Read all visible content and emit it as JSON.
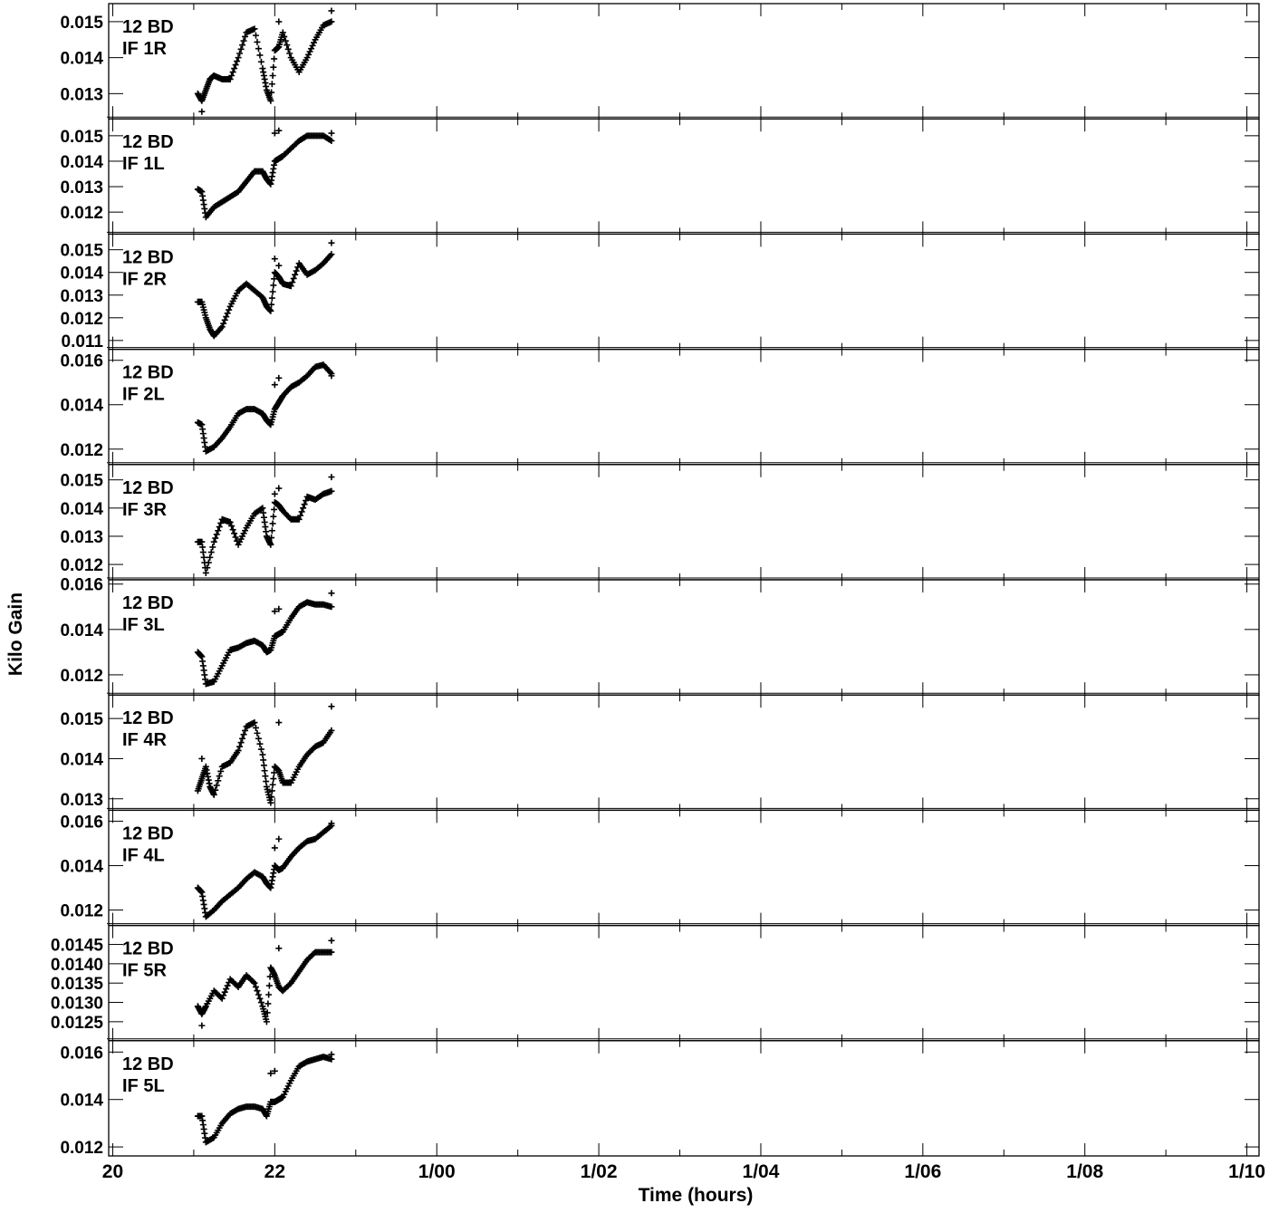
{
  "chart_data": {
    "type": "scatter",
    "marker": "plus",
    "color": "#000000",
    "xlabel": "Time (hours)",
    "ylabel": "Kilo Gain",
    "x_ticks": [
      {
        "value": 0,
        "label": "20"
      },
      {
        "value": 2,
        "label": "22"
      },
      {
        "value": 4,
        "label": "1/00"
      },
      {
        "value": 6,
        "label": "1/02"
      },
      {
        "value": 8,
        "label": "1/04"
      },
      {
        "value": 10,
        "label": "1/06"
      },
      {
        "value": 12,
        "label": "1/08"
      },
      {
        "value": 14,
        "label": "1/10"
      }
    ],
    "x_minor_step": 1,
    "xlim": [
      -0.05,
      14.15
    ],
    "panels": [
      {
        "title": "12 BD",
        "subtitle": "IF 1R",
        "ylim": [
          0.01245,
          0.01535
        ],
        "yticks": [
          {
            "value": 0.013,
            "label": "0.013"
          },
          {
            "value": 0.014,
            "label": "0.014"
          },
          {
            "value": 0.015,
            "label": "0.015"
          }
        ],
        "x": [
          1.05,
          1.1,
          1.15,
          1.2,
          1.25,
          1.35,
          1.45,
          1.55,
          1.65,
          1.75,
          1.85,
          1.9,
          1.95,
          2.0,
          2.05,
          2.1,
          2.2,
          2.3,
          2.4,
          2.5,
          2.6,
          2.7
        ],
        "y": [
          0.013,
          0.0128,
          0.0131,
          0.0134,
          0.0135,
          0.0134,
          0.0134,
          0.014,
          0.0147,
          0.0148,
          0.0137,
          0.0131,
          0.0128,
          0.0142,
          0.0143,
          0.0147,
          0.014,
          0.0136,
          0.014,
          0.0145,
          0.0149,
          0.015
        ],
        "outliers": {
          "x": [
            1.1,
            2.05,
            2.7
          ],
          "y": [
            0.0125,
            0.015,
            0.0153
          ]
        }
      },
      {
        "title": "12 BD",
        "subtitle": "IF 1L",
        "ylim": [
          0.01135,
          0.01545
        ],
        "yticks": [
          {
            "value": 0.012,
            "label": "0.012"
          },
          {
            "value": 0.013,
            "label": "0.013"
          },
          {
            "value": 0.014,
            "label": "0.014"
          },
          {
            "value": 0.015,
            "label": "0.015"
          }
        ],
        "x": [
          1.05,
          1.1,
          1.15,
          1.25,
          1.35,
          1.45,
          1.55,
          1.65,
          1.75,
          1.85,
          1.9,
          1.95,
          2.0,
          2.05,
          2.1,
          2.2,
          2.3,
          2.4,
          2.5,
          2.6,
          2.7
        ],
        "y": [
          0.0129,
          0.0128,
          0.0118,
          0.0122,
          0.0124,
          0.0126,
          0.0128,
          0.0132,
          0.0136,
          0.0136,
          0.0133,
          0.0131,
          0.014,
          0.0141,
          0.0142,
          0.0145,
          0.0148,
          0.015,
          0.015,
          0.015,
          0.0148
        ],
        "outliers": {
          "x": [
            2.0,
            2.05,
            2.7
          ],
          "y": [
            0.0151,
            0.0152,
            0.0151
          ]
        }
      },
      {
        "title": "12 BD",
        "subtitle": "IF 2R",
        "ylim": [
          0.01085,
          0.01545
        ],
        "yticks": [
          {
            "value": 0.011,
            "label": "0.011"
          },
          {
            "value": 0.012,
            "label": "0.012"
          },
          {
            "value": 0.013,
            "label": "0.013"
          },
          {
            "value": 0.014,
            "label": "0.014"
          },
          {
            "value": 0.015,
            "label": "0.015"
          }
        ],
        "x": [
          1.05,
          1.1,
          1.15,
          1.2,
          1.25,
          1.35,
          1.45,
          1.55,
          1.65,
          1.75,
          1.85,
          1.9,
          1.95,
          2.0,
          2.05,
          2.1,
          2.2,
          2.3,
          2.4,
          2.5,
          2.6,
          2.7
        ],
        "y": [
          0.0127,
          0.0127,
          0.012,
          0.0115,
          0.0112,
          0.0116,
          0.0125,
          0.0132,
          0.0135,
          0.0132,
          0.0129,
          0.0125,
          0.0123,
          0.014,
          0.0138,
          0.0135,
          0.0134,
          0.0144,
          0.0139,
          0.0141,
          0.0144,
          0.0148
        ],
        "outliers": {
          "x": [
            2.0,
            2.05,
            2.7
          ],
          "y": [
            0.0146,
            0.0143,
            0.0153
          ]
        }
      },
      {
        "title": "12 BD",
        "subtitle": "IF 2L",
        "ylim": [
          0.01155,
          0.01625
        ],
        "yticks": [
          {
            "value": 0.012,
            "label": "0.012"
          },
          {
            "value": 0.014,
            "label": "0.014"
          },
          {
            "value": 0.016,
            "label": "0.016"
          }
        ],
        "x": [
          1.05,
          1.1,
          1.15,
          1.25,
          1.35,
          1.45,
          1.55,
          1.65,
          1.75,
          1.85,
          1.9,
          1.95,
          2.0,
          2.05,
          2.1,
          2.2,
          2.3,
          2.4,
          2.5,
          2.6,
          2.7
        ],
        "y": [
          0.0132,
          0.0131,
          0.0119,
          0.0121,
          0.0125,
          0.013,
          0.0136,
          0.0138,
          0.0138,
          0.0136,
          0.0133,
          0.0131,
          0.0138,
          0.0141,
          0.0144,
          0.0148,
          0.015,
          0.0153,
          0.0157,
          0.0158,
          0.0154
        ],
        "outliers": {
          "x": [
            2.0,
            2.05,
            2.7
          ],
          "y": [
            0.0149,
            0.0152,
            0.0153
          ]
        }
      },
      {
        "title": "12 BD",
        "subtitle": "IF 3R",
        "ylim": [
          0.01165,
          0.01535
        ],
        "yticks": [
          {
            "value": 0.012,
            "label": "0.012"
          },
          {
            "value": 0.013,
            "label": "0.013"
          },
          {
            "value": 0.014,
            "label": "0.014"
          },
          {
            "value": 0.015,
            "label": "0.015"
          }
        ],
        "x": [
          1.05,
          1.1,
          1.15,
          1.25,
          1.35,
          1.45,
          1.55,
          1.65,
          1.75,
          1.85,
          1.9,
          1.95,
          2.0,
          2.05,
          2.1,
          2.2,
          2.3,
          2.4,
          2.5,
          2.6,
          2.7
        ],
        "y": [
          0.0128,
          0.0128,
          0.0117,
          0.0128,
          0.0136,
          0.0135,
          0.0127,
          0.0133,
          0.0138,
          0.014,
          0.013,
          0.0127,
          0.0142,
          0.0141,
          0.0139,
          0.0136,
          0.0136,
          0.0144,
          0.0143,
          0.0145,
          0.0146
        ],
        "outliers": {
          "x": [
            2.0,
            2.05,
            2.7
          ],
          "y": [
            0.0145,
            0.0147,
            0.0151
          ]
        }
      },
      {
        "title": "12 BD",
        "subtitle": "IF 3L",
        "ylim": [
          0.01135,
          0.01595
        ],
        "yticks": [
          {
            "value": 0.012,
            "label": "0.012"
          },
          {
            "value": 0.014,
            "label": "0.014"
          },
          {
            "value": 0.016,
            "label": "0.016"
          }
        ],
        "x": [
          1.05,
          1.1,
          1.15,
          1.25,
          1.35,
          1.45,
          1.55,
          1.65,
          1.75,
          1.85,
          1.9,
          1.95,
          2.0,
          2.05,
          2.1,
          2.2,
          2.3,
          2.4,
          2.5,
          2.6,
          2.7
        ],
        "y": [
          0.013,
          0.0128,
          0.0116,
          0.0117,
          0.0124,
          0.0131,
          0.0132,
          0.0134,
          0.0135,
          0.0133,
          0.013,
          0.0131,
          0.0137,
          0.0138,
          0.0139,
          0.0145,
          0.015,
          0.0152,
          0.0151,
          0.0151,
          0.015
        ],
        "outliers": {
          "x": [
            2.0,
            2.05,
            2.7
          ],
          "y": [
            0.0148,
            0.0149,
            0.0156
          ]
        }
      },
      {
        "title": "12 BD",
        "subtitle": "IF 4R",
        "ylim": [
          0.01285,
          0.01545
        ],
        "yticks": [
          {
            "value": 0.013,
            "label": "0.013"
          },
          {
            "value": 0.014,
            "label": "0.014"
          },
          {
            "value": 0.015,
            "label": "0.015"
          }
        ],
        "x": [
          1.05,
          1.1,
          1.15,
          1.2,
          1.25,
          1.35,
          1.45,
          1.55,
          1.65,
          1.75,
          1.85,
          1.9,
          1.95,
          2.0,
          2.05,
          2.1,
          2.2,
          2.3,
          2.4,
          2.5,
          2.6,
          2.7
        ],
        "y": [
          0.0132,
          0.0135,
          0.0138,
          0.0133,
          0.0131,
          0.0138,
          0.0139,
          0.0142,
          0.0148,
          0.0149,
          0.0141,
          0.0133,
          0.0129,
          0.0138,
          0.0137,
          0.0134,
          0.0134,
          0.0138,
          0.0141,
          0.0143,
          0.0144,
          0.0147
        ],
        "outliers": {
          "x": [
            1.1,
            2.05,
            2.7
          ],
          "y": [
            0.014,
            0.0149,
            0.0153
          ]
        }
      },
      {
        "title": "12 BD",
        "subtitle": "IF 4L",
        "ylim": [
          0.01155,
          0.01625
        ],
        "yticks": [
          {
            "value": 0.012,
            "label": "0.012"
          },
          {
            "value": 0.014,
            "label": "0.014"
          },
          {
            "value": 0.016,
            "label": "0.016"
          }
        ],
        "x": [
          1.05,
          1.1,
          1.15,
          1.25,
          1.35,
          1.45,
          1.55,
          1.65,
          1.75,
          1.85,
          1.9,
          1.95,
          2.0,
          2.05,
          2.1,
          2.2,
          2.3,
          2.4,
          2.5,
          2.6,
          2.7
        ],
        "y": [
          0.013,
          0.0128,
          0.0117,
          0.012,
          0.0124,
          0.0127,
          0.013,
          0.0134,
          0.0137,
          0.0135,
          0.0132,
          0.013,
          0.014,
          0.0138,
          0.0139,
          0.0144,
          0.0148,
          0.0151,
          0.0152,
          0.0155,
          0.0158
        ],
        "outliers": {
          "x": [
            2.0,
            2.05,
            2.7
          ],
          "y": [
            0.0148,
            0.0152,
            0.0159
          ]
        }
      },
      {
        "title": "12 BD",
        "subtitle": "IF 5R",
        "ylim": [
          0.01215,
          0.01485
        ],
        "yticks": [
          {
            "value": 0.0125,
            "label": "0.0125"
          },
          {
            "value": 0.013,
            "label": "0.0130"
          },
          {
            "value": 0.0135,
            "label": "0.0135"
          },
          {
            "value": 0.014,
            "label": "0.0140"
          },
          {
            "value": 0.0145,
            "label": "0.0145"
          }
        ],
        "x": [
          1.05,
          1.1,
          1.15,
          1.25,
          1.35,
          1.45,
          1.55,
          1.65,
          1.75,
          1.85,
          1.9,
          1.95,
          2.0,
          2.05,
          2.1,
          2.2,
          2.3,
          2.4,
          2.5,
          2.6,
          2.7
        ],
        "y": [
          0.0129,
          0.0127,
          0.0129,
          0.0133,
          0.0131,
          0.0136,
          0.0134,
          0.0137,
          0.0135,
          0.0129,
          0.0125,
          0.0139,
          0.0137,
          0.0134,
          0.0133,
          0.0135,
          0.0138,
          0.0141,
          0.0143,
          0.0143,
          0.0143
        ],
        "outliers": {
          "x": [
            1.1,
            2.05,
            2.7
          ],
          "y": [
            0.0124,
            0.0144,
            0.0146
          ]
        }
      },
      {
        "title": "12 BD",
        "subtitle": "IF 5L",
        "ylim": [
          0.01185,
          0.01625
        ],
        "yticks": [
          {
            "value": 0.012,
            "label": "0.012"
          },
          {
            "value": 0.014,
            "label": "0.014"
          },
          {
            "value": 0.016,
            "label": "0.016"
          }
        ],
        "x": [
          1.05,
          1.1,
          1.15,
          1.25,
          1.35,
          1.45,
          1.55,
          1.65,
          1.75,
          1.85,
          1.9,
          1.95,
          2.0,
          2.05,
          2.1,
          2.2,
          2.3,
          2.4,
          2.5,
          2.6,
          2.7
        ],
        "y": [
          0.0133,
          0.0133,
          0.0122,
          0.0124,
          0.013,
          0.0134,
          0.0136,
          0.0137,
          0.0137,
          0.0136,
          0.0133,
          0.0139,
          0.0139,
          0.014,
          0.0141,
          0.0148,
          0.0154,
          0.0156,
          0.0157,
          0.0158,
          0.0157
        ],
        "outliers": {
          "x": [
            1.95,
            2.0,
            2.7
          ],
          "y": [
            0.0151,
            0.0152,
            0.0159
          ]
        }
      }
    ]
  }
}
